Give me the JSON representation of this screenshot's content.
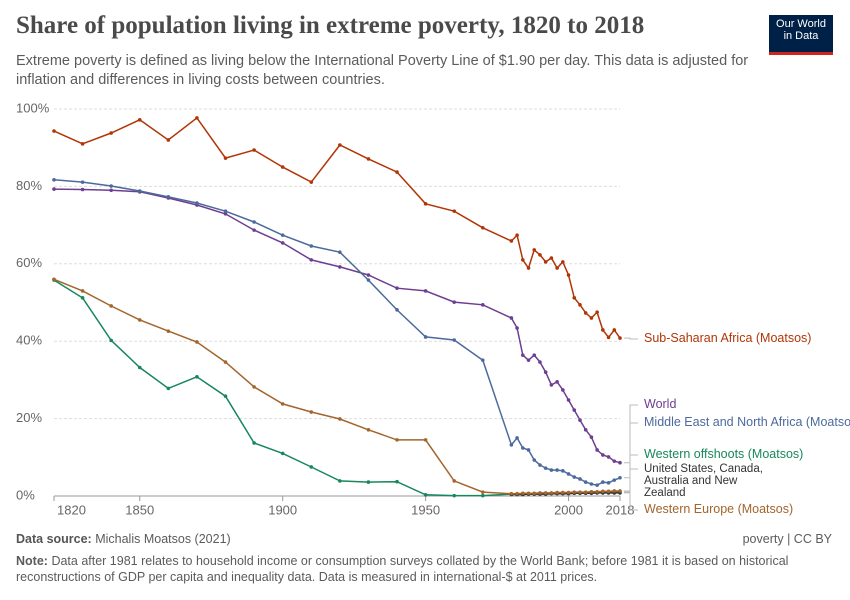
{
  "chart_data": {
    "type": "line",
    "title": "Share of population living in extreme poverty, 1820 to 2018",
    "subtitle": "Extreme poverty is defined as living below the International Poverty Line of $1.90 per day. This data is adjusted for inflation and differences in living costs between countries.",
    "logo": "Our World in Data",
    "source_label": "Data source:",
    "source": "Michalis Moatsos (2021)",
    "footer_right": "poverty | CC BY",
    "note_label": "Note:",
    "note": "Data after 1981 relates to household income or consumption surveys collated by the World Bank; before 1981 it is based on historical reconstructions of GDP per capita and inequality data. Data is measured in international-$ at 2011 prices.",
    "x": [
      1820,
      1830,
      1840,
      1850,
      1860,
      1870,
      1880,
      1890,
      1900,
      1910,
      1920,
      1930,
      1940,
      1950,
      1960,
      1970,
      1980,
      1982,
      1984,
      1986,
      1988,
      1990,
      1992,
      1994,
      1996,
      1998,
      2000,
      2002,
      2004,
      2006,
      2008,
      2010,
      2012,
      2014,
      2016,
      2018
    ],
    "xlim": [
      1820,
      2018
    ],
    "xticks": [
      1820,
      1850,
      1900,
      1950,
      2000,
      2018
    ],
    "ylim": [
      0,
      100
    ],
    "yticks": [
      {
        "value": 0,
        "label": "0%"
      },
      {
        "value": 20,
        "label": "20%"
      },
      {
        "value": 40,
        "label": "40%"
      },
      {
        "value": 60,
        "label": "60%"
      },
      {
        "value": 80,
        "label": "80%"
      },
      {
        "value": 100,
        "label": "100%"
      }
    ],
    "grid": true,
    "series": [
      {
        "name": "Sub-Saharan Africa (Moatsos)",
        "color": "#b13507",
        "values": [
          94.3,
          91,
          93.8,
          97.2,
          92,
          97.7,
          87.3,
          89.4,
          85,
          81.1,
          90.7,
          87.1,
          83.7,
          75.5,
          73.6,
          69.3,
          65.9,
          67.4,
          61,
          58.9,
          63.6,
          62.3,
          60.5,
          61.5,
          58.9,
          60.5,
          57.1,
          51.2,
          49.4,
          47.3,
          46,
          47.5,
          42.9,
          41,
          42.9,
          40.8
        ]
      },
      {
        "name": "World",
        "color": "#6d3e91",
        "values": [
          79.3,
          79.2,
          79,
          78.6,
          77,
          75.2,
          72.9,
          68.7,
          65.4,
          61,
          59.2,
          57.1,
          53.7,
          53,
          50.1,
          49.4,
          46,
          43.4,
          36.4,
          35.1,
          36.4,
          34.6,
          32,
          28.7,
          29.5,
          27.4,
          24.8,
          22.2,
          19.6,
          17.1,
          15.2,
          11.9,
          10.6,
          10.1,
          9,
          8.6
        ]
      },
      {
        "name": "Middle East and North Africa (Moatsos)",
        "color": "#4c6a9c",
        "values": [
          81.7,
          81.1,
          80.1,
          78.8,
          77.3,
          75.7,
          73.6,
          70.8,
          67.4,
          64.6,
          63,
          55.8,
          48.1,
          41.1,
          40.3,
          35.1,
          13.2,
          15,
          12.4,
          11.9,
          9.3,
          8,
          7.2,
          6.7,
          6.7,
          6.5,
          5.7,
          4.9,
          4.4,
          3.6,
          3.1,
          2.8,
          3.6,
          3.4,
          4.1,
          4.7
        ]
      },
      {
        "name": "Western offshoots (Moatsos)",
        "color": "#18875c",
        "values": [
          55.8,
          51.2,
          40.2,
          33.2,
          27.8,
          30.8,
          25.8,
          13.7,
          11,
          7.5,
          3.9,
          3.6,
          3.7,
          0.3,
          0.1,
          0.1,
          0.5,
          0.5,
          0.5,
          0.6,
          0.6,
          0.6,
          0.7,
          0.7,
          0.7,
          0.7,
          0.8,
          0.8,
          0.8,
          0.8,
          0.9,
          0.9,
          0.9,
          0.9,
          1,
          1
        ]
      },
      {
        "name": "United States, Canada, Australia and New Zealand",
        "color": "#333333",
        "values": [
          null,
          null,
          null,
          null,
          null,
          null,
          null,
          null,
          null,
          null,
          null,
          null,
          null,
          null,
          null,
          null,
          0.4,
          0.4,
          0.4,
          0.5,
          0.5,
          0.5,
          0.5,
          0.6,
          0.6,
          0.6,
          0.6,
          0.7,
          0.7,
          0.7,
          0.7,
          0.8,
          0.8,
          0.8,
          0.8,
          0.8
        ]
      },
      {
        "name": "Western Europe (Moatsos)",
        "color": "#a2652c",
        "values": [
          56,
          53,
          49.1,
          45.5,
          42.6,
          39.8,
          34.6,
          28.2,
          23.8,
          21.7,
          19.9,
          17.1,
          14.5,
          14.5,
          3.9,
          1,
          0.6,
          0.6,
          0.7,
          0.7,
          0.7,
          0.8,
          0.8,
          0.8,
          0.9,
          0.9,
          0.9,
          1,
          1,
          1,
          1.1,
          1.1,
          1.2,
          1.2,
          1.3,
          1.3
        ]
      }
    ]
  }
}
